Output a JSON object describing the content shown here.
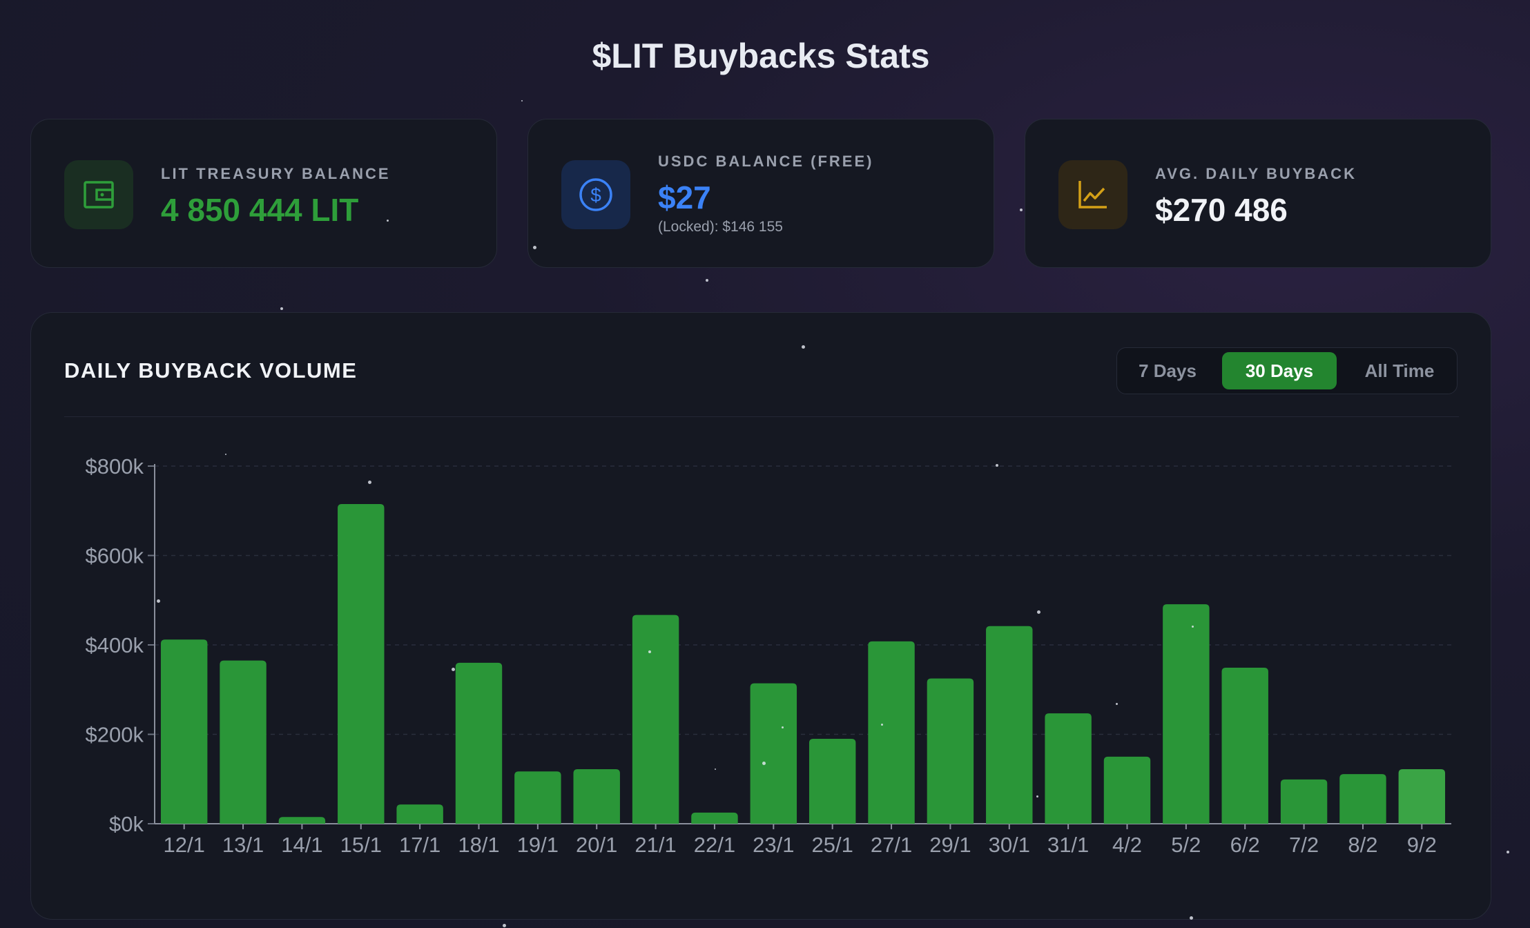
{
  "page": {
    "title": "$LIT Buybacks Stats"
  },
  "cards": [
    {
      "label": "LIT TREASURY BALANCE",
      "value": "4 850 444 LIT",
      "icon": "wallet-icon",
      "accent": "#2e9e3a"
    },
    {
      "label": "USDC BALANCE (FREE)",
      "value": "$27",
      "sub": "(Locked): $146 155",
      "icon": "dollar-icon",
      "accent": "#3b82f6"
    },
    {
      "label": "AVG. DAILY BUYBACK",
      "value": "$270 486",
      "icon": "chart-line-icon",
      "accent": "#d4a017"
    }
  ],
  "panel": {
    "title": "DAILY BUYBACK VOLUME",
    "ranges": [
      "7 Days",
      "30 Days",
      "All Time"
    ],
    "active_range": "30 Days"
  },
  "colors": {
    "bar": "#2a9638",
    "bar_last": "#3aa445",
    "active_tab": "#23852f"
  },
  "chart_data": {
    "type": "bar",
    "categories": [
      "12/1",
      "13/1",
      "14/1",
      "15/1",
      "17/1",
      "18/1",
      "19/1",
      "20/1",
      "21/1",
      "22/1",
      "23/1",
      "25/1",
      "27/1",
      "29/1",
      "30/1",
      "31/1",
      "4/2",
      "5/2",
      "6/2",
      "7/2",
      "8/2",
      "9/2"
    ],
    "values": [
      412000,
      365000,
      15000,
      715000,
      43000,
      360000,
      117000,
      122000,
      467000,
      25000,
      314000,
      190000,
      408000,
      325000,
      442000,
      247000,
      150000,
      491000,
      349000,
      99000,
      111000,
      122000
    ],
    "yticks": [
      "$0k",
      "$200k",
      "$400k",
      "$600k",
      "$800k"
    ],
    "ylim": [
      0,
      800000
    ],
    "grid": true,
    "title": "",
    "xlabel": "",
    "ylabel": ""
  }
}
